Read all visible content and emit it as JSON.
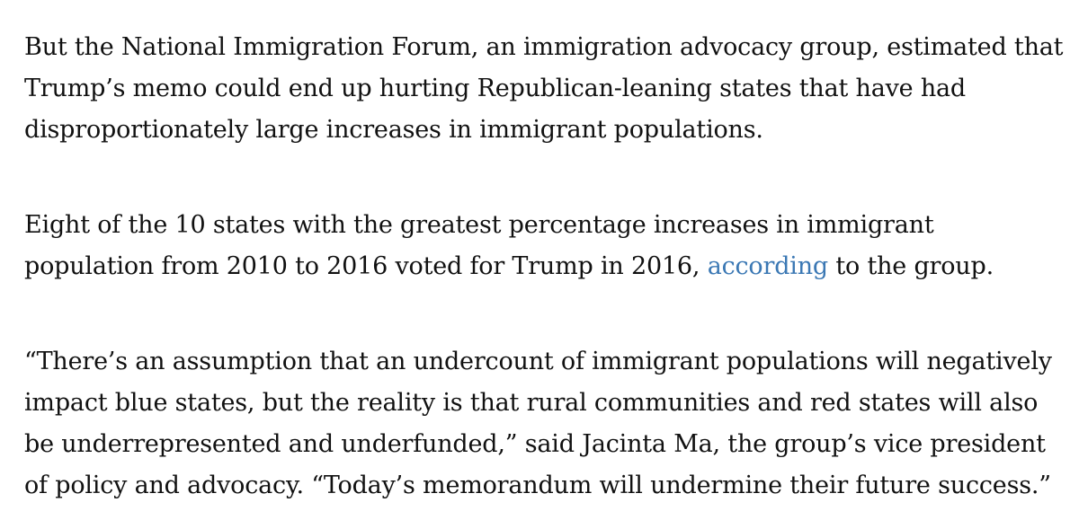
{
  "article": {
    "paragraph_1": "But the National Immigration Forum, an immigration advocacy group, estimated that Trump’s memo could end up hurting Republican-leaning states that have had disproportionately large increases in immigrant populations.",
    "paragraph_2": {
      "before_link": "Eight of the 10 states with the greatest percentage increases in immigrant population from 2010 to 2016 voted for Trump in 2016, ",
      "link_text": "according",
      "after_link": " to the group."
    },
    "paragraph_3": "“There’s an assumption that an undercount of immigrant populations will negatively impact blue states, but the reality is that rural communities and red states will also be underrepresented and underfunded,” said Jacinta Ma, the group’s vice president of policy and advocacy. “Today’s memorandum will undermine their future success.”"
  },
  "colors": {
    "text": "#111111",
    "link": "#3b78b4",
    "background": "#ffffff"
  }
}
